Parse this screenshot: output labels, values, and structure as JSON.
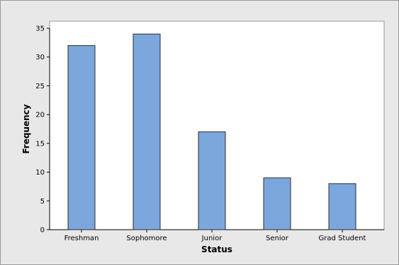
{
  "chart_data": {
    "type": "bar",
    "title": "",
    "xlabel": "Status",
    "ylabel": "Frequency",
    "categories": [
      "Freshman",
      "Sophomore",
      "Junior",
      "Senior",
      "Grad Student"
    ],
    "values": [
      32,
      34,
      17,
      9,
      8
    ],
    "ylim": [
      0,
      35
    ],
    "yticks": [
      0,
      5,
      10,
      15,
      20,
      25,
      30,
      35
    ],
    "grid": false,
    "colors": {
      "bar_fill": "#7ba7dc",
      "bar_stroke": "#2e2e2e",
      "plot_background": "#ffffff",
      "outer_background": "#e8e8e8"
    }
  }
}
